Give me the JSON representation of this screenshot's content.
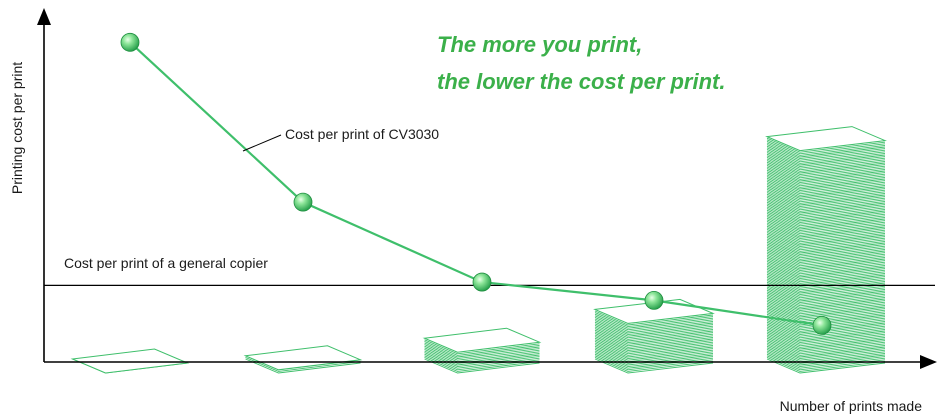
{
  "chart_data": {
    "type": "line",
    "title": "",
    "xlabel": "Number of prints made",
    "ylabel": "Printing cost per print",
    "headline": [
      "The more you print,",
      "the lower the cost per print."
    ],
    "x": [
      1,
      2,
      3,
      4,
      5
    ],
    "ylim": [
      0,
      10
    ],
    "series": [
      {
        "name": "Cost per print of CV3030",
        "values": [
          9.6,
          4.8,
          2.4,
          1.85,
          1.1
        ]
      }
    ],
    "reference_line": {
      "name": "Cost per print of a general copier",
      "value": 2.3
    },
    "stacks": [
      1,
      3,
      14,
      32,
      140
    ],
    "grid": false,
    "legend": "none",
    "colors": {
      "line": "#3fbf6b",
      "marker": "#35b85f",
      "headline": "#3bb04a",
      "stack": "#3fbf6b",
      "axis": "#000000"
    }
  }
}
